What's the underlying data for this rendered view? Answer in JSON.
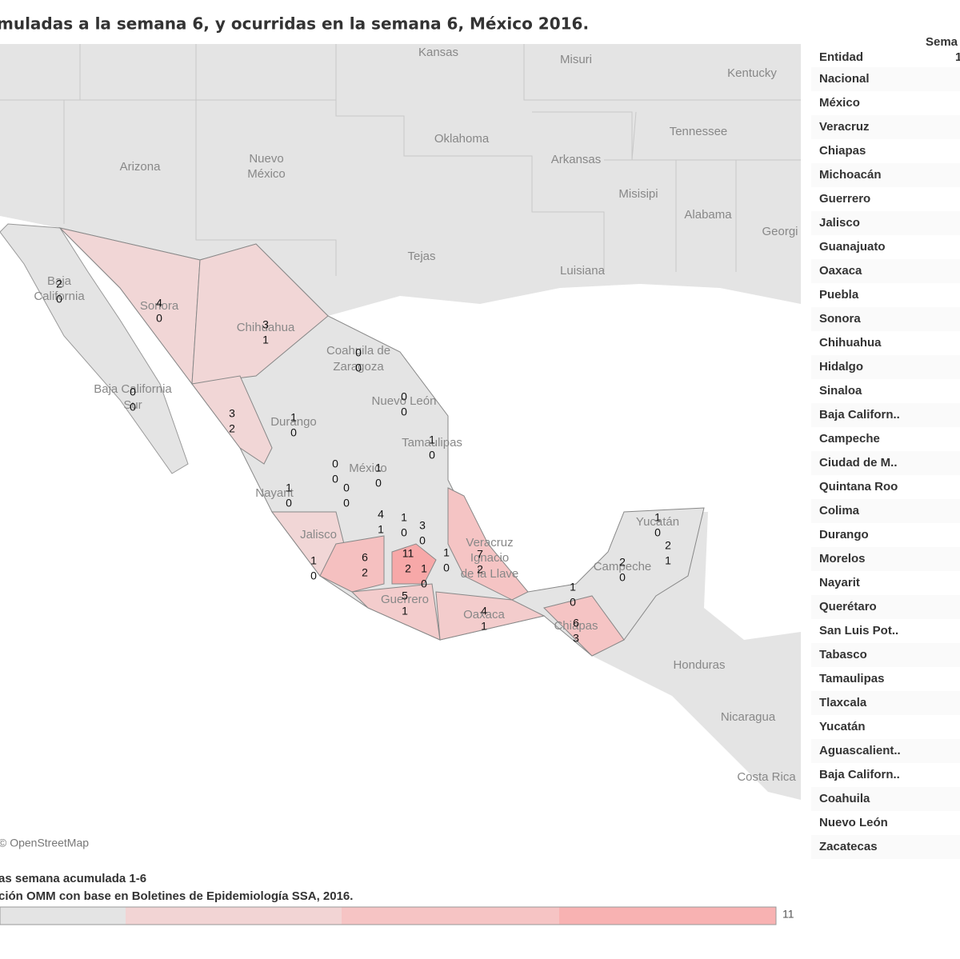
{
  "header": {
    "title": "muladas a la semana 6, y ocurridas en la semana 6, México 2016."
  },
  "map": {
    "places": [
      "Kansas",
      "Misuri",
      "Kentucky",
      "Oklahoma",
      "Tennessee",
      "Arizona",
      "Nuevo",
      "México",
      "Arkansas",
      "Misisipi",
      "Alabama",
      "Georgi",
      "Tejas",
      "Luisiana",
      "Baja",
      "California",
      "Sonora",
      "Chihuahua",
      "Coahuila de",
      "Zaragoza",
      "Baja California",
      "Sur",
      "Durango",
      "Nuevo León",
      "Tamaulipas",
      "México",
      "Nayarit",
      "Jalisco",
      "Veracruz",
      "Ignacio",
      "de la Llave",
      "Guerrero",
      "Oaxaca",
      "Chiapas",
      "Campeche",
      "Yucatán",
      "Honduras",
      "Nicaragua",
      "Costa Rica"
    ],
    "attribution": "© OpenStreetMap",
    "state_labels": [
      [
        2,
        0
      ],
      [
        4,
        0
      ],
      [
        3,
        1
      ],
      [
        0,
        0
      ],
      [
        0,
        0
      ],
      [
        3,
        2
      ],
      [
        0,
        0
      ],
      [
        1,
        0
      ],
      [
        1,
        0
      ],
      [
        0,
        0
      ],
      [
        1,
        0
      ],
      [
        0,
        0
      ],
      [
        1,
        0
      ],
      [
        4,
        1
      ],
      [
        1,
        0
      ],
      [
        3,
        0
      ],
      [
        1,
        0
      ],
      [
        6,
        2
      ],
      [
        11,
        2
      ],
      [
        1,
        0
      ],
      [
        1,
        0
      ],
      [
        7,
        2
      ],
      [
        5,
        1
      ],
      [
        4,
        1
      ],
      [
        1,
        0
      ],
      [
        6,
        3
      ],
      [
        2,
        0
      ],
      [
        1,
        0
      ],
      [
        2,
        1
      ]
    ]
  },
  "table": {
    "column_headers": [
      "Entidad",
      "Sema",
      "1"
    ],
    "rows": [
      "Nacional",
      "México",
      "Veracruz",
      "Chiapas",
      "Michoacán",
      "Guerrero",
      "Jalisco",
      "Guanajuato",
      "Oaxaca",
      "Puebla",
      "Sonora",
      "Chihuahua",
      "Hidalgo",
      "Sinaloa",
      "Baja Californ..",
      "Campeche",
      "Ciudad de M..",
      "Quintana Roo",
      "Colima",
      "Durango",
      "Morelos",
      "Nayarit",
      "Querétaro",
      "San Luis Pot..",
      "Tabasco",
      "Tamaulipas",
      "Tlaxcala",
      "Yucatán",
      "Aguascalient..",
      "Baja Californ..",
      "Coahuila",
      "Nuevo León",
      "Zacatecas"
    ]
  },
  "legend": {
    "title": "as semana acumulada 1-6",
    "source": "ción OMM con base en Boletines de Epidemiología SSA, 2016.",
    "max": 11
  }
}
